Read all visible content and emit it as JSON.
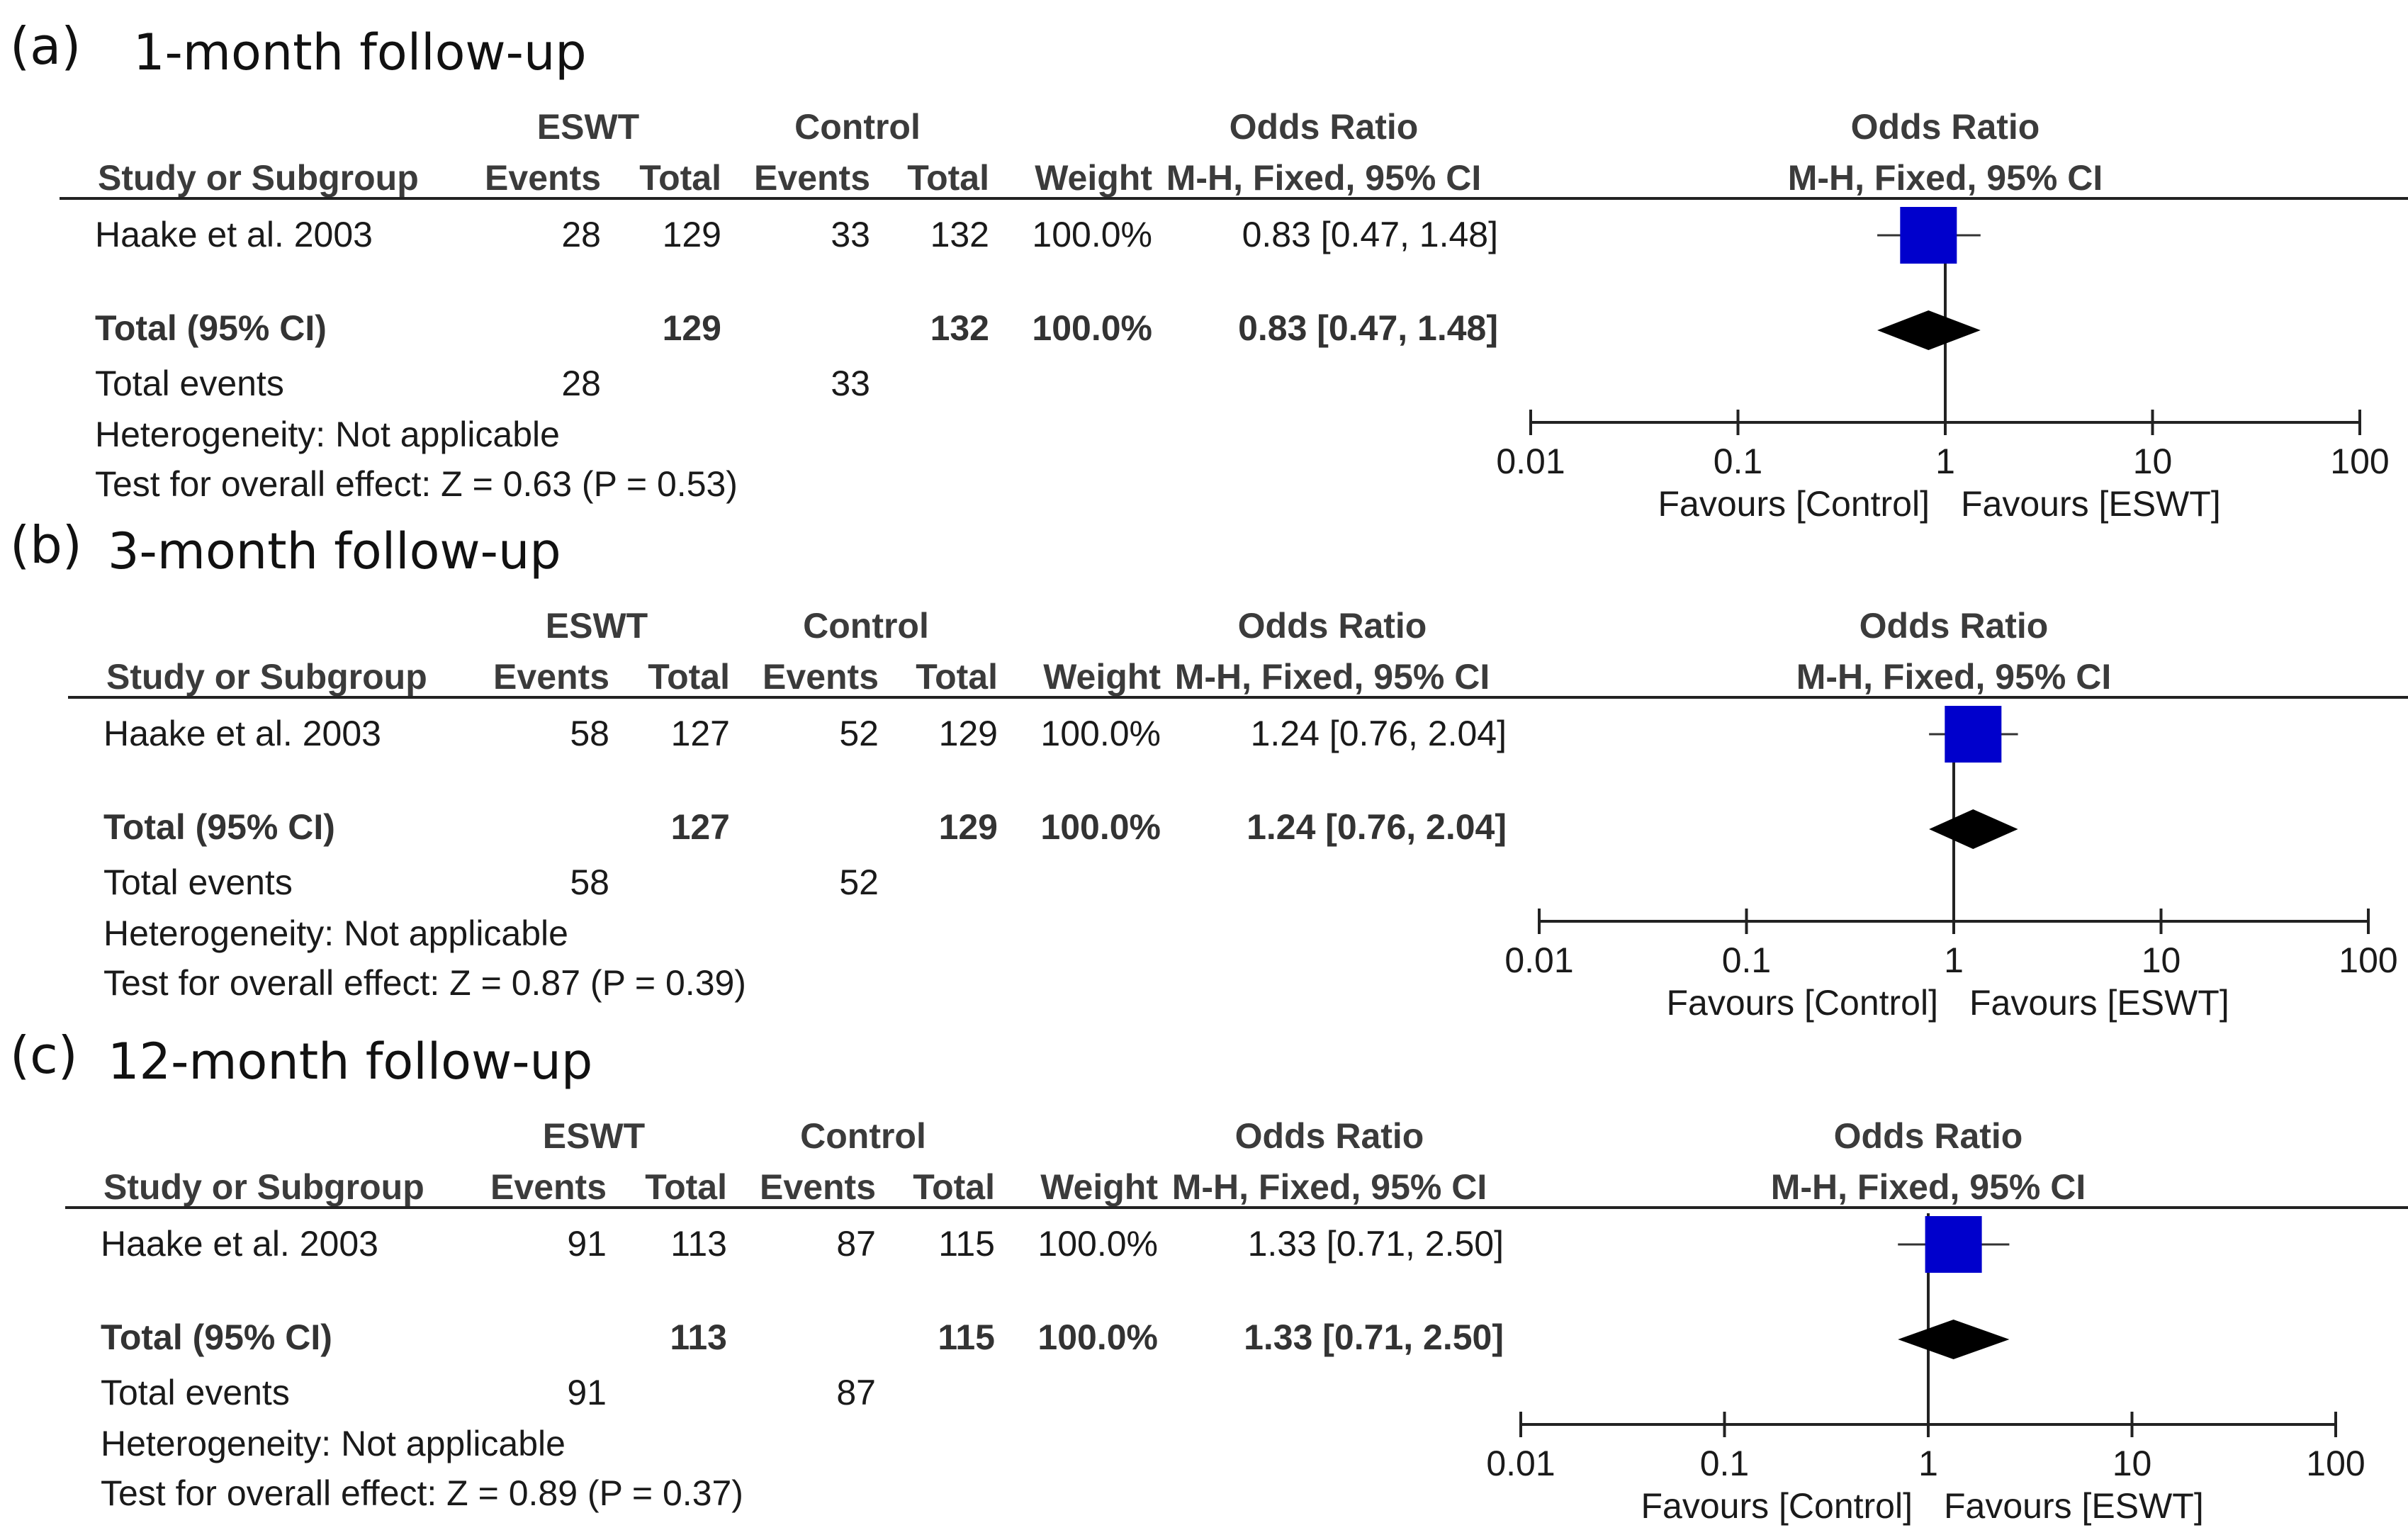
{
  "chart_data": [
    {
      "type": "forest",
      "panel_label": "(a)",
      "title": "1-month follow-up",
      "headers": {
        "group1": "ESWT",
        "group2": "Control",
        "effect_col": "Odds Ratio",
        "effect_method": "M-H, Fixed, 95% CI",
        "plot_title": "Odds Ratio",
        "plot_method": "M-H, Fixed, 95% CI",
        "study_col": "Study or Subgroup",
        "events": "Events",
        "total": "Total",
        "weight": "Weight"
      },
      "studies": [
        {
          "name": "Haake et al. 2003",
          "e_events": "28",
          "e_total": "129",
          "c_events": "33",
          "c_total": "132",
          "weight": "100.0%",
          "ci_text": "0.83 [0.47, 1.48]",
          "or": 0.83,
          "lo": 0.47,
          "hi": 1.48
        }
      ],
      "total": {
        "label": "Total (95% CI)",
        "e_total": "129",
        "c_total": "132",
        "weight": "100.0%",
        "ci_text": "0.83 [0.47, 1.48]",
        "or": 0.83,
        "lo": 0.47,
        "hi": 1.48
      },
      "total_events": {
        "label": "Total events",
        "e": "28",
        "c": "33"
      },
      "heterogeneity": "Heterogeneity: Not applicable",
      "overall_effect": "Test for overall effect: Z = 0.63 (P = 0.53)",
      "axis": {
        "scale": "log",
        "ticks": [
          0.01,
          0.1,
          1,
          10,
          100
        ],
        "tick_labels": [
          "0.01",
          "0.1",
          "1",
          "10",
          "100"
        ],
        "favours_left": "Favours [Control]",
        "favours_right": "Favours [ESWT]"
      }
    },
    {
      "type": "forest",
      "panel_label": "(b)",
      "title": "3-month follow-up",
      "headers": {
        "group1": "ESWT",
        "group2": "Control",
        "effect_col": "Odds Ratio",
        "effect_method": "M-H, Fixed, 95% CI",
        "plot_title": "Odds Ratio",
        "plot_method": "M-H, Fixed, 95% CI",
        "study_col": "Study or Subgroup",
        "events": "Events",
        "total": "Total",
        "weight": "Weight"
      },
      "studies": [
        {
          "name": "Haake et al. 2003",
          "e_events": "58",
          "e_total": "127",
          "c_events": "52",
          "c_total": "129",
          "weight": "100.0%",
          "ci_text": "1.24 [0.76, 2.04]",
          "or": 1.24,
          "lo": 0.76,
          "hi": 2.04
        }
      ],
      "total": {
        "label": "Total (95% CI)",
        "e_total": "127",
        "c_total": "129",
        "weight": "100.0%",
        "ci_text": "1.24 [0.76, 2.04]",
        "or": 1.24,
        "lo": 0.76,
        "hi": 2.04
      },
      "total_events": {
        "label": "Total events",
        "e": "58",
        "c": "52"
      },
      "heterogeneity": "Heterogeneity: Not applicable",
      "overall_effect": "Test for overall effect: Z = 0.87 (P = 0.39)",
      "axis": {
        "scale": "log",
        "ticks": [
          0.01,
          0.1,
          1,
          10,
          100
        ],
        "tick_labels": [
          "0.01",
          "0.1",
          "1",
          "10",
          "100"
        ],
        "favours_left": "Favours [Control]",
        "favours_right": "Favours [ESWT]"
      }
    },
    {
      "type": "forest",
      "panel_label": "(c)",
      "title": "12-month follow-up",
      "headers": {
        "group1": "ESWT",
        "group2": "Control",
        "effect_col": "Odds Ratio",
        "effect_method": "M-H, Fixed, 95% CI",
        "plot_title": "Odds Ratio",
        "plot_method": "M-H, Fixed, 95% CI",
        "study_col": "Study or Subgroup",
        "events": "Events",
        "total": "Total",
        "weight": "Weight"
      },
      "studies": [
        {
          "name": "Haake et al. 2003",
          "e_events": "91",
          "e_total": "113",
          "c_events": "87",
          "c_total": "115",
          "weight": "100.0%",
          "ci_text": "1.33 [0.71, 2.50]",
          "or": 1.33,
          "lo": 0.71,
          "hi": 2.5
        }
      ],
      "total": {
        "label": "Total (95% CI)",
        "e_total": "113",
        "c_total": "115",
        "weight": "100.0%",
        "ci_text": "1.33 [0.71, 2.50]",
        "or": 1.33,
        "lo": 0.71,
        "hi": 2.5
      },
      "total_events": {
        "label": "Total events",
        "e": "91",
        "c": "87"
      },
      "heterogeneity": "Heterogeneity: Not applicable",
      "overall_effect": "Test for overall effect: Z = 0.89 (P = 0.37)",
      "axis": {
        "scale": "log",
        "ticks": [
          0.01,
          0.1,
          1,
          10,
          100
        ],
        "tick_labels": [
          "0.01",
          "0.1",
          "1",
          "10",
          "100"
        ],
        "favours_left": "Favours [Control]",
        "favours_right": "Favours [ESWT]"
      }
    }
  ],
  "colors": {
    "study_marker": "#0000cc",
    "summary_diamond": "#000000",
    "text": "#1a1a1a",
    "header_text": "#3b3b3b"
  }
}
